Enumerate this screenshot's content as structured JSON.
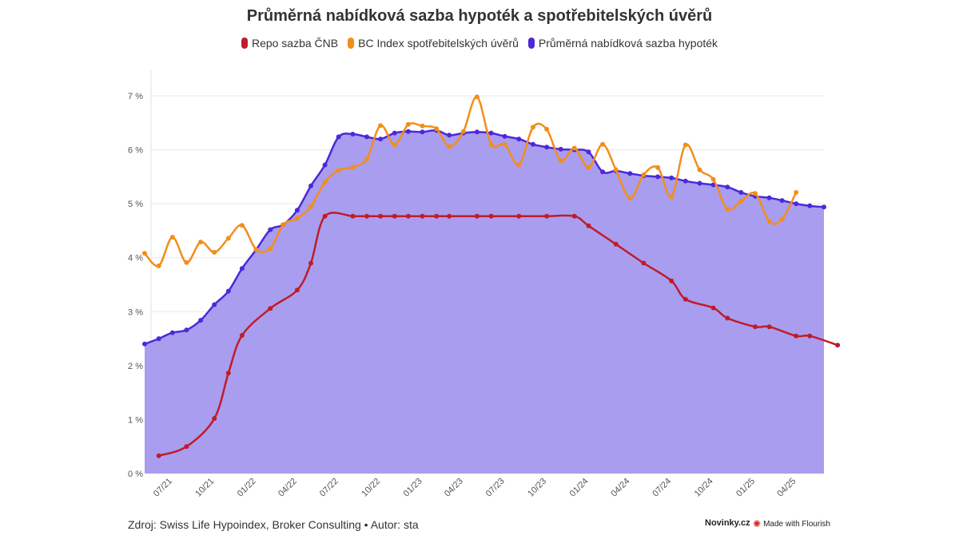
{
  "chart_data": {
    "type": "line",
    "title": "Průměrná nabídková sazba hypoték a spotřebitelských úvěrů",
    "xlabel": "",
    "ylabel": "",
    "ylim": [
      0,
      7
    ],
    "y_ticks": [
      0,
      1,
      2,
      3,
      4,
      5,
      6,
      7
    ],
    "y_tick_labels": [
      "0 %",
      "1 %",
      "2 %",
      "3 %",
      "4 %",
      "5 %",
      "6 %",
      "7 %"
    ],
    "x_ticks": [
      "07/21",
      "10/21",
      "01/22",
      "04/22",
      "07/22",
      "10/22",
      "01/23",
      "04/23",
      "07/23",
      "10/23",
      "01/24",
      "04/24",
      "07/24",
      "10/24",
      "01/25",
      "04/25"
    ],
    "x_range": [
      "2021-05-15",
      "2025-06-01"
    ],
    "grid": true,
    "legend_position": "top-center",
    "series": [
      {
        "name": "Repo sazba ČNB",
        "color": "#c01c28",
        "area": false,
        "points": [
          [
            "2021-06-01",
            0.33
          ],
          [
            "2021-08-01",
            0.5
          ],
          [
            "2021-10-01",
            1.02
          ],
          [
            "2021-11-01",
            1.86
          ],
          [
            "2021-12-01",
            2.56
          ],
          [
            "2022-02-01",
            3.06
          ],
          [
            "2022-04-01",
            3.4
          ],
          [
            "2022-05-01",
            3.9
          ],
          [
            "2022-06-01",
            4.77
          ],
          [
            "2022-08-01",
            4.77
          ],
          [
            "2022-09-01",
            4.77
          ],
          [
            "2022-10-01",
            4.77
          ],
          [
            "2022-11-01",
            4.77
          ],
          [
            "2022-12-01",
            4.77
          ],
          [
            "2023-01-01",
            4.77
          ],
          [
            "2023-02-01",
            4.77
          ],
          [
            "2023-03-01",
            4.77
          ],
          [
            "2023-05-01",
            4.77
          ],
          [
            "2023-06-01",
            4.77
          ],
          [
            "2023-08-01",
            4.77
          ],
          [
            "2023-10-01",
            4.77
          ],
          [
            "2023-12-01",
            4.77
          ],
          [
            "2024-01-01",
            4.59
          ],
          [
            "2024-03-01",
            4.25
          ],
          [
            "2024-05-01",
            3.9
          ],
          [
            "2024-07-01",
            3.57
          ],
          [
            "2024-08-01",
            3.23
          ],
          [
            "2024-10-01",
            3.07
          ],
          [
            "2024-11-01",
            2.88
          ],
          [
            "2025-01-01",
            2.72
          ],
          [
            "2025-02-01",
            2.72
          ],
          [
            "2025-04-01",
            2.55
          ],
          [
            "2025-05-01",
            2.55
          ],
          [
            "2025-07-01",
            2.38
          ]
        ]
      },
      {
        "name": "BC Index spotřebitelských úvěrů",
        "color": "#f28e1c",
        "area": false,
        "points": [
          [
            "2021-05-01",
            4.08
          ],
          [
            "2021-06-01",
            3.85
          ],
          [
            "2021-07-01",
            4.38
          ],
          [
            "2021-08-01",
            3.91
          ],
          [
            "2021-09-01",
            4.29
          ],
          [
            "2021-10-01",
            4.1
          ],
          [
            "2021-11-01",
            4.36
          ],
          [
            "2021-12-01",
            4.6
          ],
          [
            "2022-01-01",
            4.15
          ],
          [
            "2022-02-01",
            4.17
          ],
          [
            "2022-03-01",
            4.61
          ],
          [
            "2022-04-01",
            4.73
          ],
          [
            "2022-05-01",
            4.95
          ],
          [
            "2022-06-01",
            5.4
          ],
          [
            "2022-07-01",
            5.62
          ],
          [
            "2022-08-01",
            5.68
          ],
          [
            "2022-09-01",
            5.83
          ],
          [
            "2022-10-01",
            6.45
          ],
          [
            "2022-11-01",
            6.09
          ],
          [
            "2022-12-01",
            6.47
          ],
          [
            "2023-01-01",
            6.44
          ],
          [
            "2023-02-01",
            6.39
          ],
          [
            "2023-03-01",
            6.06
          ],
          [
            "2023-04-01",
            6.34
          ],
          [
            "2023-05-01",
            6.98
          ],
          [
            "2023-06-01",
            6.1
          ],
          [
            "2023-07-01",
            6.1
          ],
          [
            "2023-08-01",
            5.72
          ],
          [
            "2023-09-01",
            6.42
          ],
          [
            "2023-10-01",
            6.38
          ],
          [
            "2023-11-01",
            5.8
          ],
          [
            "2023-12-01",
            6.03
          ],
          [
            "2024-01-01",
            5.67
          ],
          [
            "2024-02-01",
            6.1
          ],
          [
            "2024-03-01",
            5.63
          ],
          [
            "2024-04-01",
            5.1
          ],
          [
            "2024-05-01",
            5.54
          ],
          [
            "2024-06-01",
            5.67
          ],
          [
            "2024-07-01",
            5.13
          ],
          [
            "2024-08-01",
            6.09
          ],
          [
            "2024-09-01",
            5.63
          ],
          [
            "2024-10-01",
            5.45
          ],
          [
            "2024-11-01",
            4.9
          ],
          [
            "2024-12-01",
            5.05
          ],
          [
            "2025-01-01",
            5.19
          ],
          [
            "2025-02-01",
            4.67
          ],
          [
            "2025-03-01",
            4.71
          ],
          [
            "2025-04-01",
            5.21
          ]
        ]
      },
      {
        "name": "Průměrná nabídková sazba hypoték",
        "color": "#4d28d9",
        "area": true,
        "area_color": "#a99df0",
        "points": [
          [
            "2021-05-01",
            2.4
          ],
          [
            "2021-06-01",
            2.5
          ],
          [
            "2021-07-01",
            2.61
          ],
          [
            "2021-08-01",
            2.66
          ],
          [
            "2021-09-01",
            2.84
          ],
          [
            "2021-10-01",
            3.13
          ],
          [
            "2021-11-01",
            3.38
          ],
          [
            "2021-12-01",
            3.8
          ],
          [
            "2022-01-01",
            4.15
          ],
          [
            "2022-02-01",
            4.52
          ],
          [
            "2022-03-01",
            4.61
          ],
          [
            "2022-04-01",
            4.88
          ],
          [
            "2022-05-01",
            5.33
          ],
          [
            "2022-06-01",
            5.72
          ],
          [
            "2022-07-01",
            6.24
          ],
          [
            "2022-08-01",
            6.29
          ],
          [
            "2022-09-01",
            6.24
          ],
          [
            "2022-10-01",
            6.2
          ],
          [
            "2022-11-01",
            6.31
          ],
          [
            "2022-12-01",
            6.34
          ],
          [
            "2023-01-01",
            6.33
          ],
          [
            "2023-02-01",
            6.36
          ],
          [
            "2023-03-01",
            6.27
          ],
          [
            "2023-04-01",
            6.31
          ],
          [
            "2023-05-01",
            6.33
          ],
          [
            "2023-06-01",
            6.31
          ],
          [
            "2023-07-01",
            6.25
          ],
          [
            "2023-08-01",
            6.2
          ],
          [
            "2023-09-01",
            6.1
          ],
          [
            "2023-10-01",
            6.05
          ],
          [
            "2023-11-01",
            6.01
          ],
          [
            "2023-12-01",
            6.0
          ],
          [
            "2024-01-01",
            5.96
          ],
          [
            "2024-02-01",
            5.59
          ],
          [
            "2024-03-01",
            5.61
          ],
          [
            "2024-04-01",
            5.56
          ],
          [
            "2024-05-01",
            5.52
          ],
          [
            "2024-06-01",
            5.5
          ],
          [
            "2024-07-01",
            5.48
          ],
          [
            "2024-08-01",
            5.42
          ],
          [
            "2024-09-01",
            5.38
          ],
          [
            "2024-10-01",
            5.35
          ],
          [
            "2024-11-01",
            5.31
          ],
          [
            "2024-12-01",
            5.21
          ],
          [
            "2025-01-01",
            5.14
          ],
          [
            "2025-02-01",
            5.11
          ],
          [
            "2025-03-01",
            5.06
          ],
          [
            "2025-04-01",
            5.0
          ],
          [
            "2025-05-01",
            4.96
          ],
          [
            "2025-06-01",
            4.94
          ]
        ]
      }
    ]
  },
  "footer": {
    "source": "Zdroj: Swiss Life Hypoindex, Broker Consulting • Autor: sta",
    "brand": "Novinky.cz",
    "made_with": "Made with Flourish"
  }
}
